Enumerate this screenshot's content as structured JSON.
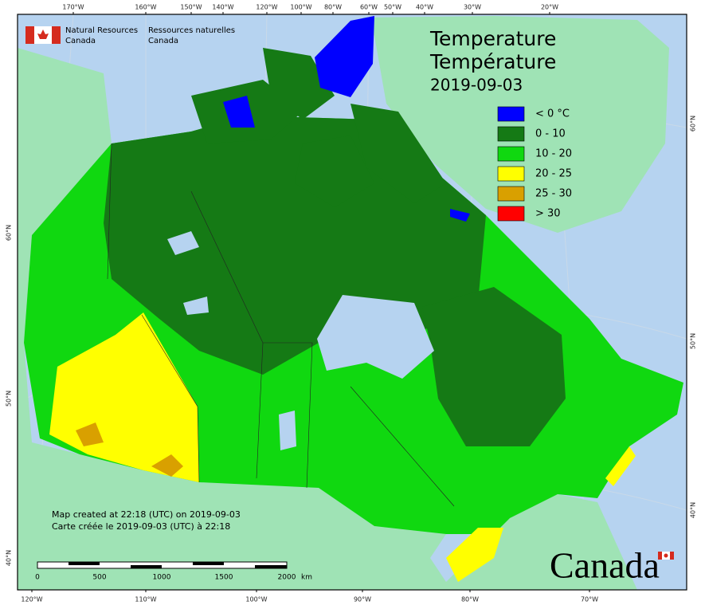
{
  "header": {
    "en": [
      "Natural Resources",
      "Canada"
    ],
    "fr": [
      "Ressources naturelles",
      "Canada"
    ]
  },
  "title": [
    "Temperature",
    "Température",
    "2019-09-03"
  ],
  "legend": [
    {
      "label": "< 0 °C",
      "color": "#0000ff"
    },
    {
      "label": "0 - 10",
      "color": "#157a15"
    },
    {
      "label": "10 - 20",
      "color": "#10d810"
    },
    {
      "label": "20 - 25",
      "color": "#ffff00"
    },
    {
      "label": "25 - 30",
      "color": "#d9a000"
    },
    {
      "label": "> 30",
      "color": "#ff0000"
    }
  ],
  "longitude_top": [
    "170°W",
    "160°W",
    "150°W",
    "140°W",
    "120°W",
    "100°W",
    "80°W",
    "60°W",
    "50°W",
    "40°W",
    "30°W",
    "20°W"
  ],
  "longitude_bottom": [
    "120°W",
    "110°W",
    "100°W",
    "90°W",
    "80°W",
    "70°W"
  ],
  "latitude_left": [
    "60°N",
    "50°N",
    "40°N"
  ],
  "latitude_right": [
    "60°N",
    "50°N",
    "40°N"
  ],
  "notes": [
    "Map created at 22:18 (UTC) on 2019-09-03",
    "Carte créée le 2019-09-03 (UTC) à 22:18"
  ],
  "scale": {
    "labels": [
      "0",
      "500",
      "1000",
      "1500",
      "2000"
    ],
    "unit": "km"
  },
  "wordmark": "Canada"
}
